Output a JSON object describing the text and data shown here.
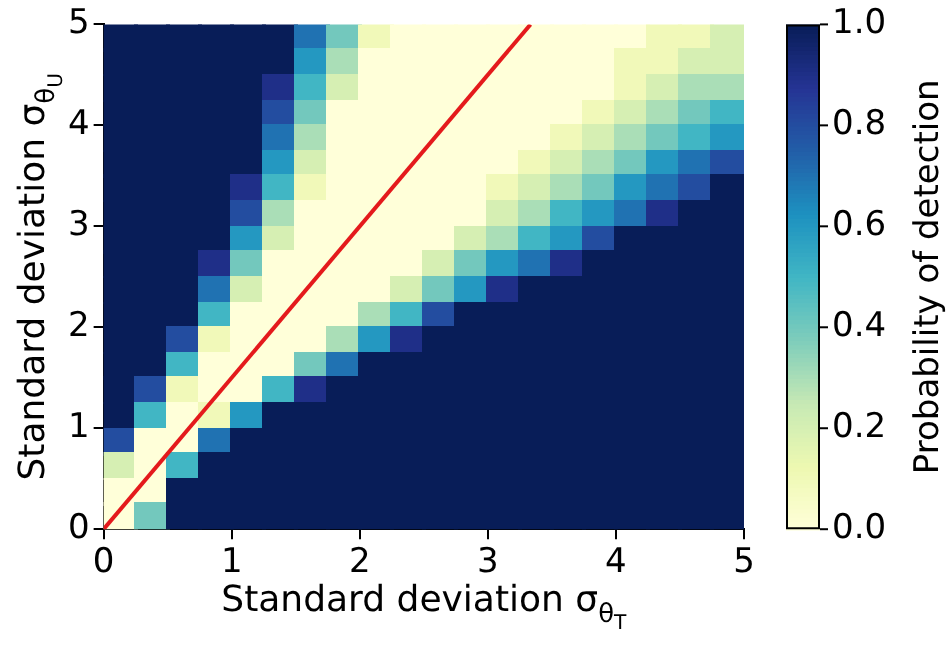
{
  "chart_data": {
    "type": "heatmap",
    "xlabel": "Standard deviation σ$_{θ}$$_{T}$",
    "ylabel": "Standard deviation σ$_{θ}$$_{U}$",
    "clabel": "Probability of detection",
    "xlim": [
      0,
      5
    ],
    "ylim": [
      0,
      5
    ],
    "xticks": [
      0,
      1,
      2,
      3,
      4,
      5
    ],
    "yticks": [
      0,
      1,
      2,
      3,
      4,
      5
    ],
    "clim": [
      0,
      1
    ],
    "cticks": [
      {
        "value": 0,
        "label": "0.0"
      },
      {
        "value": 0.2,
        "label": "0.2"
      },
      {
        "value": 0.4,
        "label": "0.4"
      },
      {
        "value": 0.6,
        "label": "0.6"
      },
      {
        "value": 0.8,
        "label": "0.8"
      },
      {
        "value": 1,
        "label": "1.0"
      }
    ],
    "cells": [
      [
        1,
        1,
        1,
        1,
        1,
        1,
        0.7,
        0.4,
        0.1,
        0,
        0,
        0,
        0,
        0,
        0,
        0,
        0,
        0.1,
        0.1,
        0.2
      ],
      [
        1,
        1,
        1,
        1,
        1,
        1,
        0.6,
        0.3,
        0,
        0,
        0,
        0,
        0,
        0,
        0,
        0,
        0.1,
        0.1,
        0.2,
        0.2
      ],
      [
        1,
        1,
        1,
        1,
        1,
        0.9,
        0.5,
        0.2,
        0,
        0,
        0,
        0,
        0,
        0,
        0,
        0,
        0.1,
        0.2,
        0.3,
        0.3
      ],
      [
        1,
        1,
        1,
        1,
        1,
        0.8,
        0.4,
        0,
        0,
        0,
        0,
        0,
        0,
        0,
        0,
        0.1,
        0.2,
        0.3,
        0.4,
        0.5
      ],
      [
        1,
        1,
        1,
        1,
        1,
        0.7,
        0.3,
        0,
        0,
        0,
        0,
        0,
        0,
        0,
        0.1,
        0.2,
        0.3,
        0.4,
        0.5,
        0.6
      ],
      [
        1,
        1,
        1,
        1,
        1,
        0.6,
        0.2,
        0,
        0,
        0,
        0,
        0,
        0,
        0.1,
        0.2,
        0.3,
        0.4,
        0.6,
        0.7,
        0.8
      ],
      [
        1,
        1,
        1,
        1,
        0.9,
        0.5,
        0.1,
        0,
        0,
        0,
        0,
        0,
        0.1,
        0.2,
        0.3,
        0.4,
        0.6,
        0.7,
        0.8,
        1
      ],
      [
        1,
        1,
        1,
        1,
        0.8,
        0.3,
        0,
        0,
        0,
        0,
        0,
        0,
        0.2,
        0.3,
        0.5,
        0.6,
        0.7,
        0.9,
        1,
        1
      ],
      [
        1,
        1,
        1,
        1,
        0.6,
        0.2,
        0,
        0,
        0,
        0,
        0,
        0.2,
        0.3,
        0.5,
        0.6,
        0.8,
        1,
        1,
        1,
        1
      ],
      [
        1,
        1,
        1,
        0.9,
        0.4,
        0,
        0,
        0,
        0,
        0,
        0.2,
        0.4,
        0.6,
        0.7,
        0.9,
        1,
        1,
        1,
        1,
        1
      ],
      [
        1,
        1,
        1,
        0.7,
        0.2,
        0,
        0,
        0,
        0,
        0.2,
        0.4,
        0.6,
        0.9,
        1,
        1,
        1,
        1,
        1,
        1,
        1
      ],
      [
        1,
        1,
        1,
        0.5,
        0,
        0,
        0,
        0,
        0.3,
        0.5,
        0.8,
        1,
        1,
        1,
        1,
        1,
        1,
        1,
        1,
        1
      ],
      [
        1,
        1,
        0.8,
        0.1,
        0,
        0,
        0,
        0.3,
        0.6,
        0.9,
        1,
        1,
        1,
        1,
        1,
        1,
        1,
        1,
        1,
        1
      ],
      [
        1,
        1,
        0.5,
        0,
        0,
        0,
        0.4,
        0.7,
        1,
        1,
        1,
        1,
        1,
        1,
        1,
        1,
        1,
        1,
        1,
        1
      ],
      [
        1,
        0.8,
        0.1,
        0,
        0,
        0.5,
        0.9,
        1,
        1,
        1,
        1,
        1,
        1,
        1,
        1,
        1,
        1,
        1,
        1,
        1
      ],
      [
        1,
        0.5,
        0,
        0.1,
        0.6,
        1,
        1,
        1,
        1,
        1,
        1,
        1,
        1,
        1,
        1,
        1,
        1,
        1,
        1,
        1
      ],
      [
        0.8,
        0,
        0,
        0.7,
        1,
        1,
        1,
        1,
        1,
        1,
        1,
        1,
        1,
        1,
        1,
        1,
        1,
        1,
        1,
        1
      ],
      [
        0.2,
        0,
        0.5,
        1,
        1,
        1,
        1,
        1,
        1,
        1,
        1,
        1,
        1,
        1,
        1,
        1,
        1,
        1,
        1,
        1
      ],
      [
        0,
        0,
        1,
        1,
        1,
        1,
        1,
        1,
        1,
        1,
        1,
        1,
        1,
        1,
        1,
        1,
        1,
        1,
        1,
        1
      ],
      [
        0,
        0.4,
        1,
        1,
        1,
        1,
        1,
        1,
        1,
        1,
        1,
        1,
        1,
        1,
        1,
        1,
        1,
        1,
        1,
        1
      ]
    ],
    "series": [
      {
        "type": "line",
        "x": [
          0,
          3.333
        ],
        "values": [
          0,
          5
        ],
        "color": "#e41a1c"
      }
    ]
  }
}
